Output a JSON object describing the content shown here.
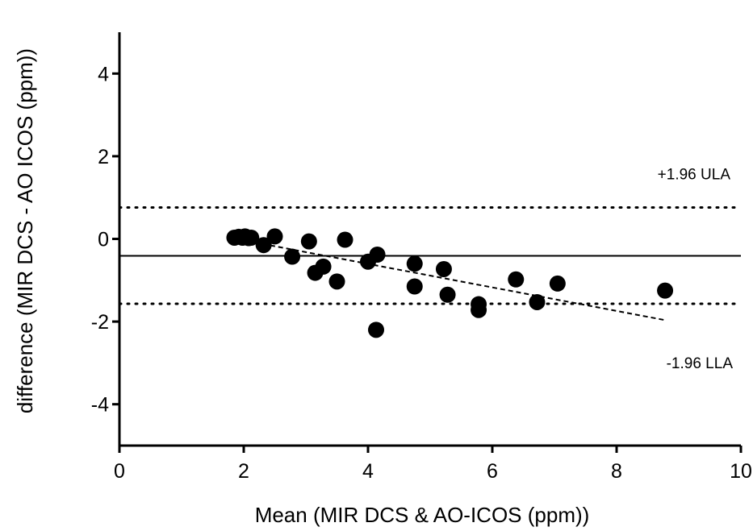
{
  "chart_data": {
    "type": "scatter",
    "title": "",
    "xlabel": "Mean (MIR DCS & AO-ICOS (ppm))",
    "ylabel": "difference (MIR DCS - AO ICOS (ppm))",
    "xlim": [
      0,
      10
    ],
    "ylim": [
      -5,
      5
    ],
    "xticks": [
      0,
      2,
      4,
      6,
      8,
      10
    ],
    "yticks": [
      -4,
      -2,
      0,
      2,
      4
    ],
    "x_tick_labels": [
      "0",
      "2",
      "4",
      "6",
      "8",
      "10"
    ],
    "y_tick_labels": [
      "-4",
      "-2",
      "0",
      "2",
      "4"
    ],
    "grid": false,
    "points": [
      {
        "x": 1.85,
        "y": 0.03
      },
      {
        "x": 1.92,
        "y": 0.05
      },
      {
        "x": 1.98,
        "y": 0.03
      },
      {
        "x": 2.02,
        "y": 0.06
      },
      {
        "x": 2.08,
        "y": 0.02
      },
      {
        "x": 2.12,
        "y": 0.03
      },
      {
        "x": 2.32,
        "y": -0.15
      },
      {
        "x": 2.5,
        "y": 0.06
      },
      {
        "x": 2.78,
        "y": -0.43
      },
      {
        "x": 3.05,
        "y": -0.06
      },
      {
        "x": 3.15,
        "y": -0.82
      },
      {
        "x": 3.28,
        "y": -0.67
      },
      {
        "x": 3.5,
        "y": -1.03
      },
      {
        "x": 3.63,
        "y": -0.02
      },
      {
        "x": 4.0,
        "y": -0.55
      },
      {
        "x": 4.15,
        "y": -0.38
      },
      {
        "x": 4.13,
        "y": -2.2
      },
      {
        "x": 4.75,
        "y": -0.6
      },
      {
        "x": 4.75,
        "y": -1.15
      },
      {
        "x": 5.22,
        "y": -0.73
      },
      {
        "x": 5.28,
        "y": -1.35
      },
      {
        "x": 5.78,
        "y": -1.58
      },
      {
        "x": 5.78,
        "y": -1.72
      },
      {
        "x": 6.38,
        "y": -0.98
      },
      {
        "x": 6.72,
        "y": -1.53
      },
      {
        "x": 7.05,
        "y": -1.08
      },
      {
        "x": 8.78,
        "y": -1.25
      }
    ],
    "mean_line": -0.41,
    "upper_limit": {
      "value": 0.76,
      "label": "+1.96 ULA"
    },
    "lower_limit": {
      "value": -1.57,
      "label": "-1.96 LLA"
    },
    "trend_line": {
      "x": [
        2.3,
        8.8
      ],
      "y": [
        -0.12,
        -1.97
      ]
    }
  }
}
